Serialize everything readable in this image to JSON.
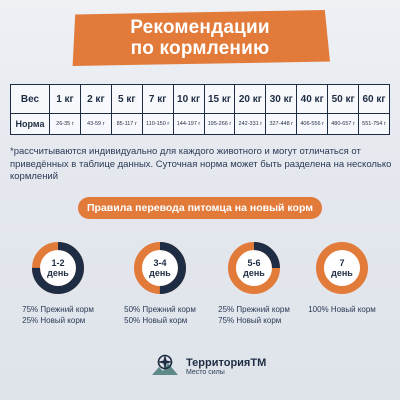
{
  "header": {
    "title_line1": "Рекомендации",
    "title_line2": "по кормлению"
  },
  "table": {
    "row1_label": "Вес",
    "row2_label": "Норма",
    "weights": [
      "1 кг",
      "2 кг",
      "5 кг",
      "7 кг",
      "10 кг",
      "15 кг",
      "20 кг",
      "30 кг",
      "40 кг",
      "50 кг",
      "60 кг"
    ],
    "norms": [
      "26-35 г",
      "43-59 г",
      "85-117 г",
      "110-150 г",
      "144-197 г",
      "195-266 г",
      "242-331 г",
      "327-448 г",
      "406-556 г",
      "480-657 г",
      "551-754 г"
    ]
  },
  "note": "*рассчитываются индивидуально для каждого животного и могут отличаться от приведённых в таблице данных. Суточная норма может быть разделена на несколько кормлений",
  "transition": {
    "title": "Правила перевода питомца на новый корм",
    "stages": [
      {
        "line1": "1-2",
        "line2": "день",
        "old_share": 0.75,
        "lines": [
          "75% Прежний корм",
          "25% Новый корм"
        ]
      },
      {
        "line1": "3-4",
        "line2": "день",
        "old_share": 0.5,
        "lines": [
          "50% Прежний корм",
          "50% Новый корм"
        ]
      },
      {
        "line1": "5-6",
        "line2": "день",
        "old_share": 0.25,
        "lines": [
          "25% Прежний корм",
          "75% Новый корм"
        ]
      },
      {
        "line1": "7",
        "line2": "день",
        "old_share": 0.0,
        "lines": [
          "100% Новый корм"
        ]
      }
    ]
  },
  "brand": {
    "name": "ТерриторияTM",
    "tagline": "Место силы",
    "icon": "compass-icon"
  },
  "colors": {
    "accent": "#e27a3a",
    "dark": "#1f2d44"
  }
}
